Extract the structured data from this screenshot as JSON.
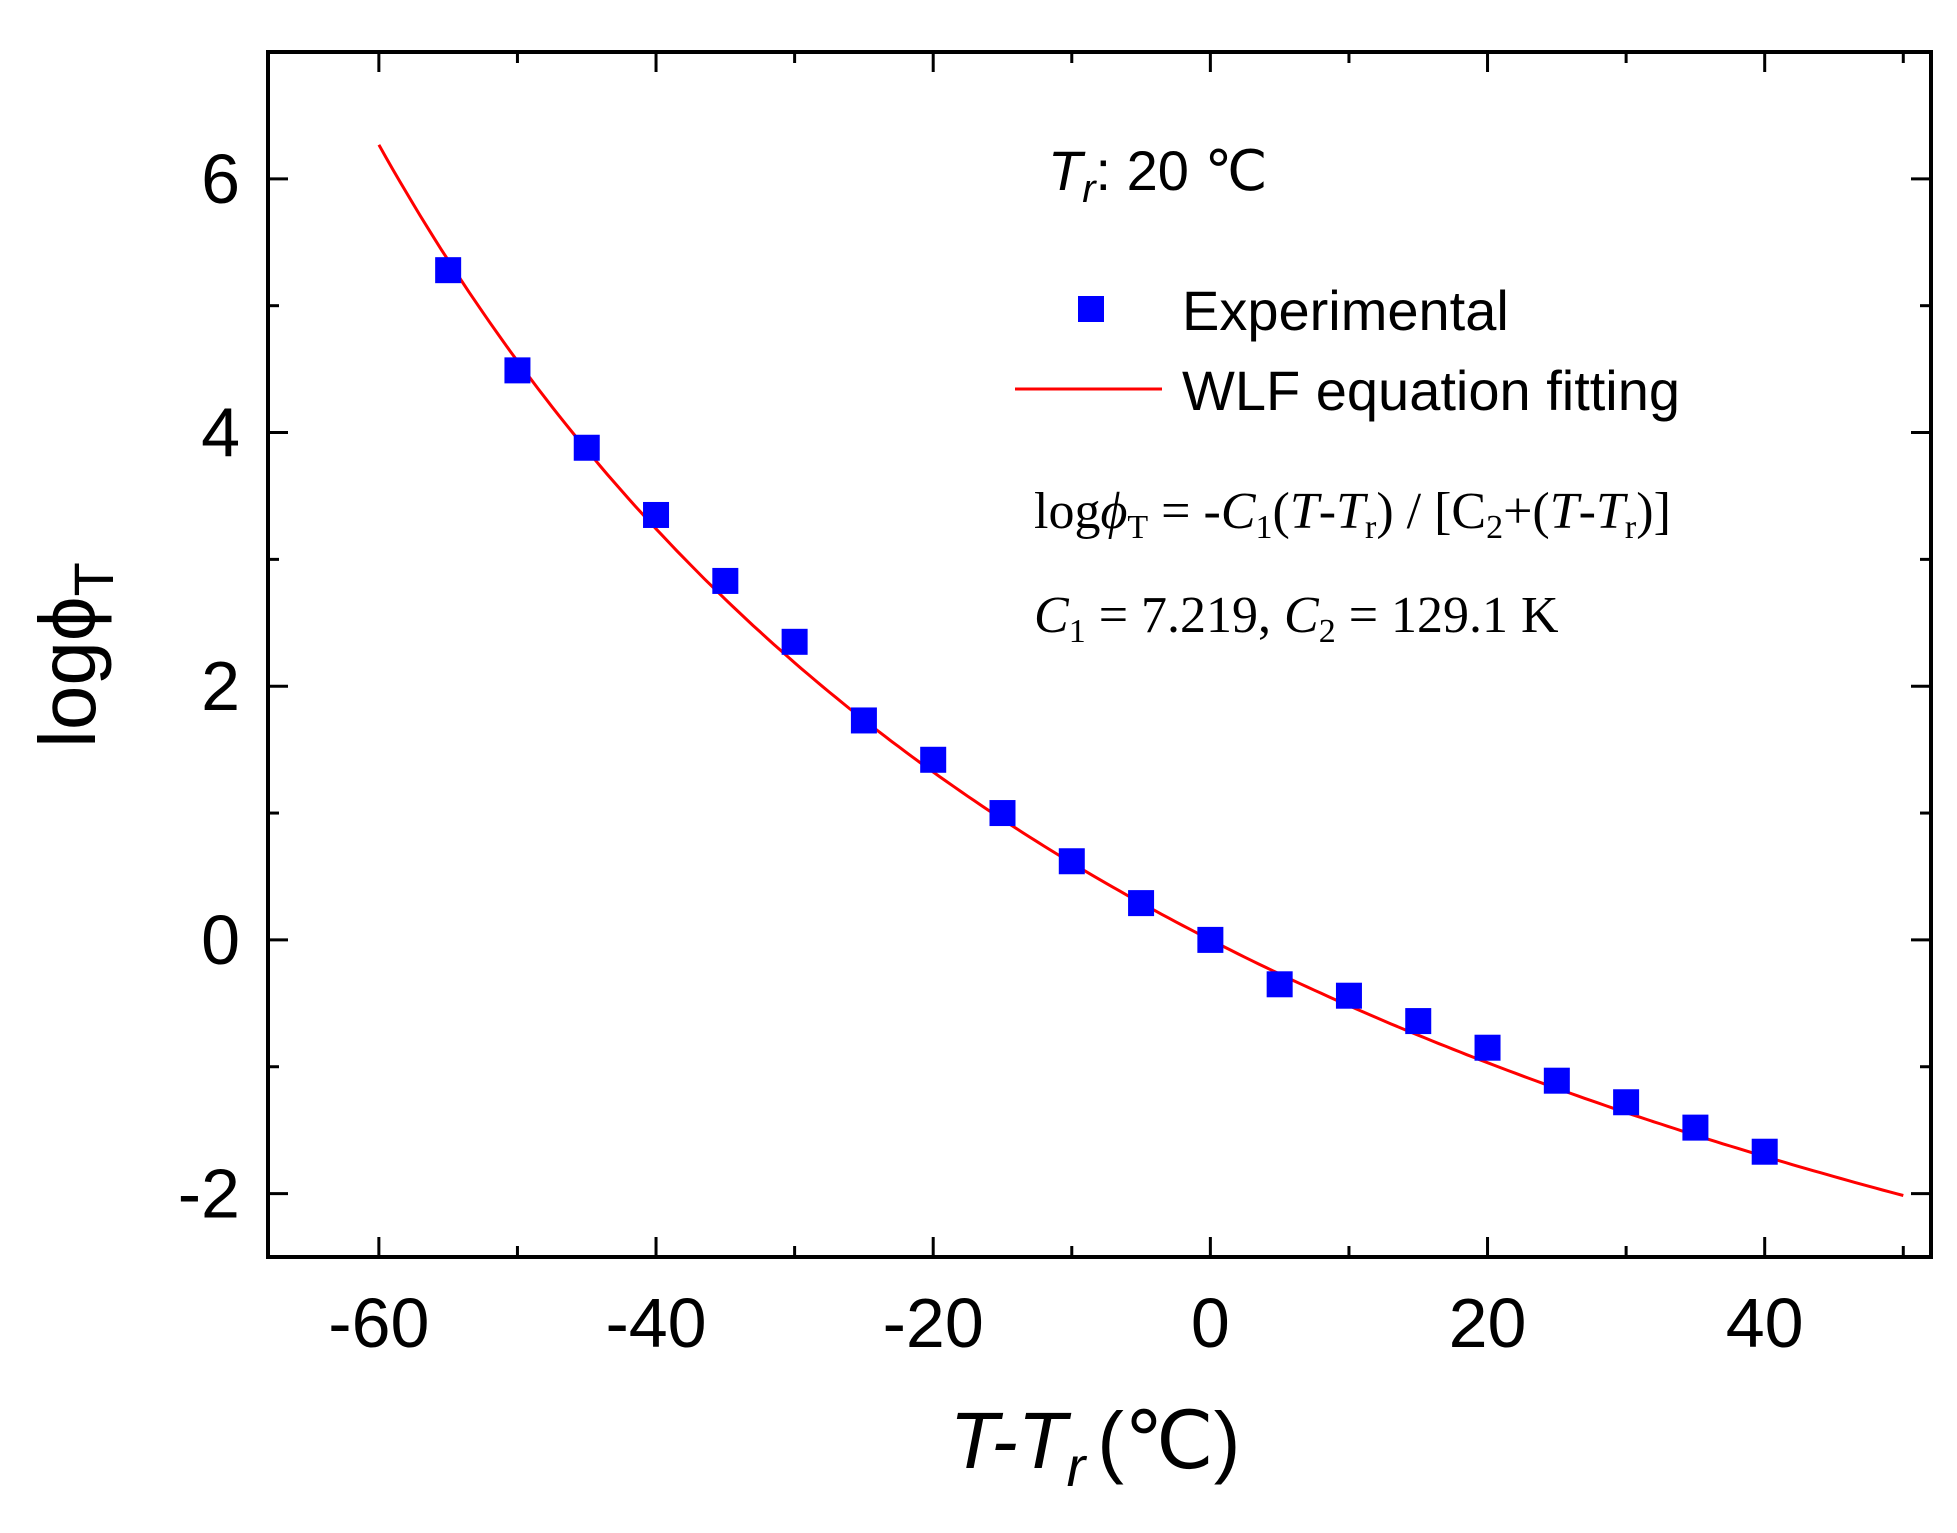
{
  "chart_data": {
    "type": "scatter",
    "title": "",
    "xlabel": {
      "main": "T-T",
      "sub": "r",
      "unit": "(℃)"
    },
    "ylabel": {
      "main": "logϕ",
      "sub": "T"
    },
    "xlim": [
      -68,
      52
    ],
    "ylim": [
      -2.5,
      7.0
    ],
    "x_ticks": [
      -60,
      -40,
      -20,
      0,
      20,
      40
    ],
    "x_tick_labels": [
      "-60",
      "-40",
      "-20",
      "0",
      "20",
      "40"
    ],
    "x_minor_ticks": [
      -50,
      -30,
      -10,
      10,
      30,
      50
    ],
    "y_ticks": [
      -2,
      0,
      2,
      4,
      6
    ],
    "y_tick_labels": [
      "-2",
      "0",
      "2",
      "4",
      "6"
    ],
    "y_minor_ticks": [
      -1,
      1,
      3,
      5
    ],
    "grid": false,
    "legend_position": "top-right",
    "series": [
      {
        "name": "Experimental",
        "kind": "scatter",
        "marker": "square",
        "color": "#0000ff",
        "x": [
          -55,
          -50,
          -45,
          -40,
          -35,
          -30,
          -25,
          -20,
          -15,
          -10,
          -5,
          0,
          5,
          10,
          15,
          20,
          25,
          30,
          35,
          40
        ],
        "y": [
          5.28,
          4.49,
          3.88,
          3.35,
          2.83,
          2.35,
          1.73,
          1.42,
          1.0,
          0.62,
          0.29,
          0.0,
          -0.35,
          -0.44,
          -0.64,
          -0.85,
          -1.11,
          -1.28,
          -1.48,
          -1.67
        ]
      },
      {
        "name": "WLF equation fitting",
        "kind": "line",
        "color": "#ff0000",
        "model": {
          "C1": 7.219,
          "C2": 129.1
        },
        "x_range": [
          -60,
          50
        ]
      }
    ],
    "annotations": {
      "reference_temp": {
        "symbol": "T",
        "sub": "r",
        "text": ": 20 ℃"
      },
      "equation_line": "logϕT = -C1(T-Tr) / [C2+(T-Tr)]",
      "parameters_line": "C1 = 7.219, C2 = 129.1 K"
    }
  }
}
